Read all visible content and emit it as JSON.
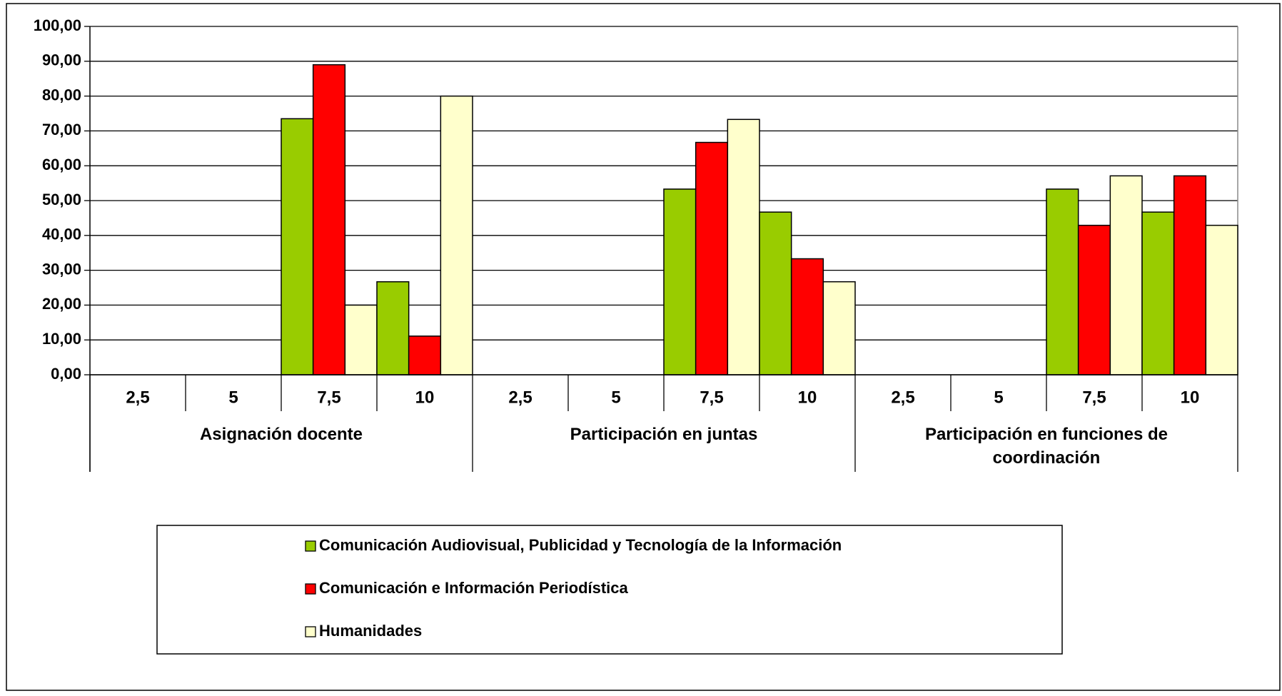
{
  "chart_data": {
    "type": "bar",
    "groups": [
      {
        "name": "Asignación docente",
        "categories": [
          "2,5",
          "5",
          "7,5",
          "10"
        ]
      },
      {
        "name": "Participación en juntas",
        "categories": [
          "2,5",
          "5",
          "7,5",
          "10"
        ]
      },
      {
        "name": "Participación en funciones de coordinación",
        "categories": [
          "2,5",
          "5",
          "7,5",
          "10"
        ]
      }
    ],
    "series": [
      {
        "name": "Comunicación Audiovisual, Publicidad y Tecnología de la Información",
        "color": "#99cc00",
        "values": [
          null,
          null,
          73.5,
          26.7,
          null,
          null,
          53.3,
          46.7,
          null,
          null,
          53.3,
          46.7
        ]
      },
      {
        "name": "Comunicación e Información Periodística",
        "color": "#ff0000",
        "values": [
          null,
          null,
          89.0,
          11.1,
          null,
          null,
          66.7,
          33.3,
          null,
          null,
          42.9,
          57.1
        ]
      },
      {
        "name": "Humanidades",
        "color": "#ffffcc",
        "values": [
          null,
          null,
          20.0,
          80.0,
          null,
          null,
          73.3,
          26.7,
          null,
          null,
          57.1,
          42.9
        ]
      }
    ],
    "ylim": [
      0,
      100
    ],
    "yticks": [
      {
        "value": 0,
        "label": "0,00"
      },
      {
        "value": 10,
        "label": "10,00"
      },
      {
        "value": 20,
        "label": "20,00"
      },
      {
        "value": 30,
        "label": "30,00"
      },
      {
        "value": 40,
        "label": "40,00"
      },
      {
        "value": 50,
        "label": "50,00"
      },
      {
        "value": 60,
        "label": "60,00"
      },
      {
        "value": 70,
        "label": "70,00"
      },
      {
        "value": 80,
        "label": "80,00"
      },
      {
        "value": 90,
        "label": "90,00"
      },
      {
        "value": 100,
        "label": "100,00"
      }
    ],
    "grid": true,
    "legend": "bottom"
  }
}
